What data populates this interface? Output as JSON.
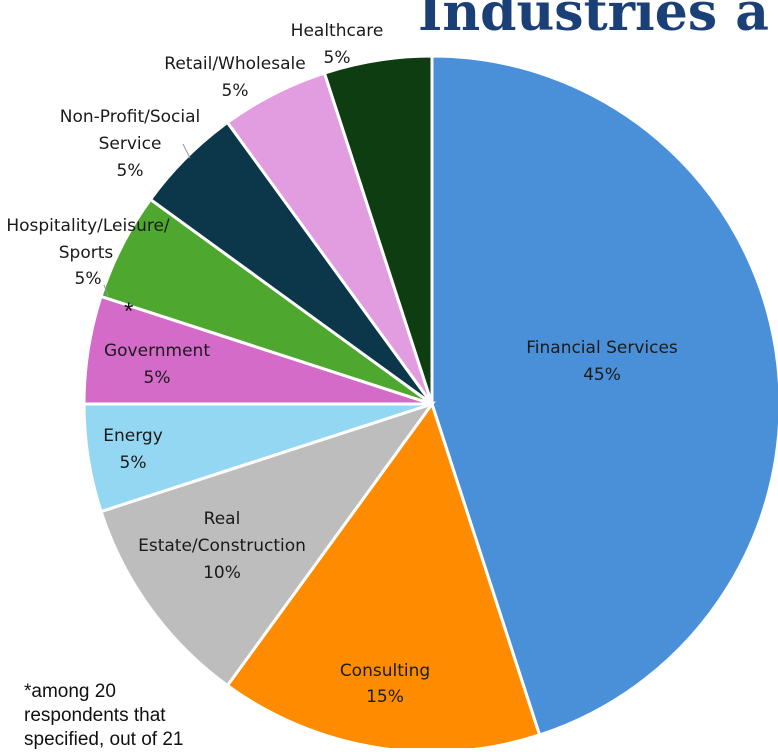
{
  "slide": {
    "title": "Industries a",
    "footnote": "*among 20\nrespondents that\nspecified, out of 21"
  },
  "chart_data": {
    "type": "pie",
    "title": "",
    "start_angle_deg": 0,
    "direction": "clockwise",
    "slices": [
      {
        "label": "Financial Services",
        "value": 45,
        "display": "45%",
        "color": "#4a90d9"
      },
      {
        "label": "Consulting",
        "value": 15,
        "display": "15%",
        "color": "#ff8c00"
      },
      {
        "label": "Real Estate/Construction",
        "value": 10,
        "display": "10%",
        "color": "#bdbdbd"
      },
      {
        "label": "Energy",
        "value": 5,
        "display": "5%",
        "color": "#93d7f3"
      },
      {
        "label": "Government",
        "value": 5,
        "display": "5%",
        "color": "#d56bc8",
        "asterisk": "*"
      },
      {
        "label": "Hospitality/Leisure/Sports",
        "value": 5,
        "display": "5%",
        "color": "#4ea72e"
      },
      {
        "label": "Non-Profit/Social Service",
        "value": 5,
        "display": "5%",
        "color": "#0c364a"
      },
      {
        "label": "Retail/Wholesale",
        "value": 5,
        "display": "5%",
        "color": "#e29ce0"
      },
      {
        "label": "Healthcare",
        "value": 5,
        "display": "5%",
        "color": "#0f3d12"
      }
    ]
  }
}
